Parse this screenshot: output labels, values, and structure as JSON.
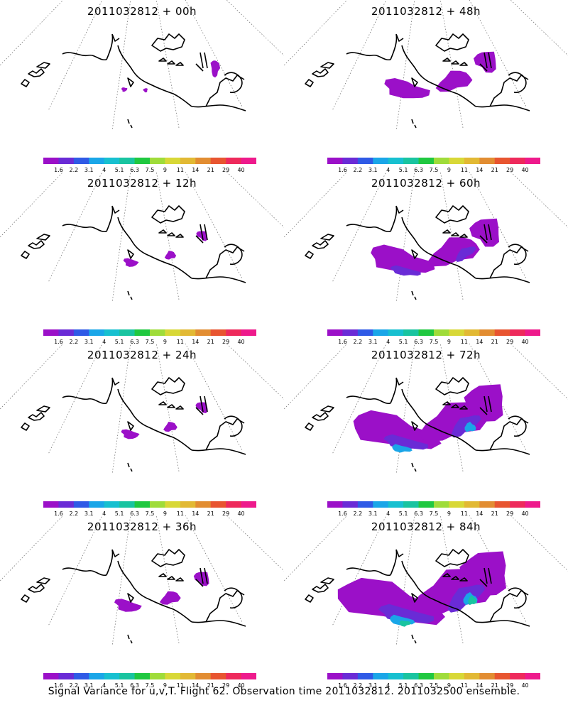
{
  "colorbar": {
    "colors": [
      "#9b10c8",
      "#6a2bd6",
      "#2f5ae6",
      "#1aa6e8",
      "#17c0d0",
      "#19c4a0",
      "#20c840",
      "#9fdc3a",
      "#d8d837",
      "#e2b934",
      "#e28d32",
      "#e85530",
      "#ee2a5c",
      "#ee1a8c"
    ],
    "labels": [
      "1.6",
      "2.2",
      "3.1",
      "4",
      "5.1",
      "6.3",
      "7.5",
      "9",
      "11",
      "14",
      "21",
      "29",
      "40"
    ]
  },
  "panels": [
    {
      "title": "2011032812 + 00h",
      "variance_level": 0.0
    },
    {
      "title": "2011032812 + 48h",
      "variance_level": 0.35
    },
    {
      "title": "2011032812 + 12h",
      "variance_level": 0.03
    },
    {
      "title": "2011032812 + 60h",
      "variance_level": 0.55
    },
    {
      "title": "2011032812 + 24h",
      "variance_level": 0.06
    },
    {
      "title": "2011032812 + 72h",
      "variance_level": 0.8
    },
    {
      "title": "2011032812 + 36h",
      "variance_level": 0.15
    },
    {
      "title": "2011032812 + 84h",
      "variance_level": 1.0
    }
  ],
  "map": {
    "land_color": "#000000",
    "grid_color": "#777777",
    "shade_low": "#9b10c8",
    "shade_mid": "#6a2bd6",
    "shade_high": "#1aa6e8",
    "shade_peak": "#19c4a0"
  },
  "footer": "Signal Variance for u,v,T. Flight 62. Observation time 2011032812. 2011032500 ensemble."
}
